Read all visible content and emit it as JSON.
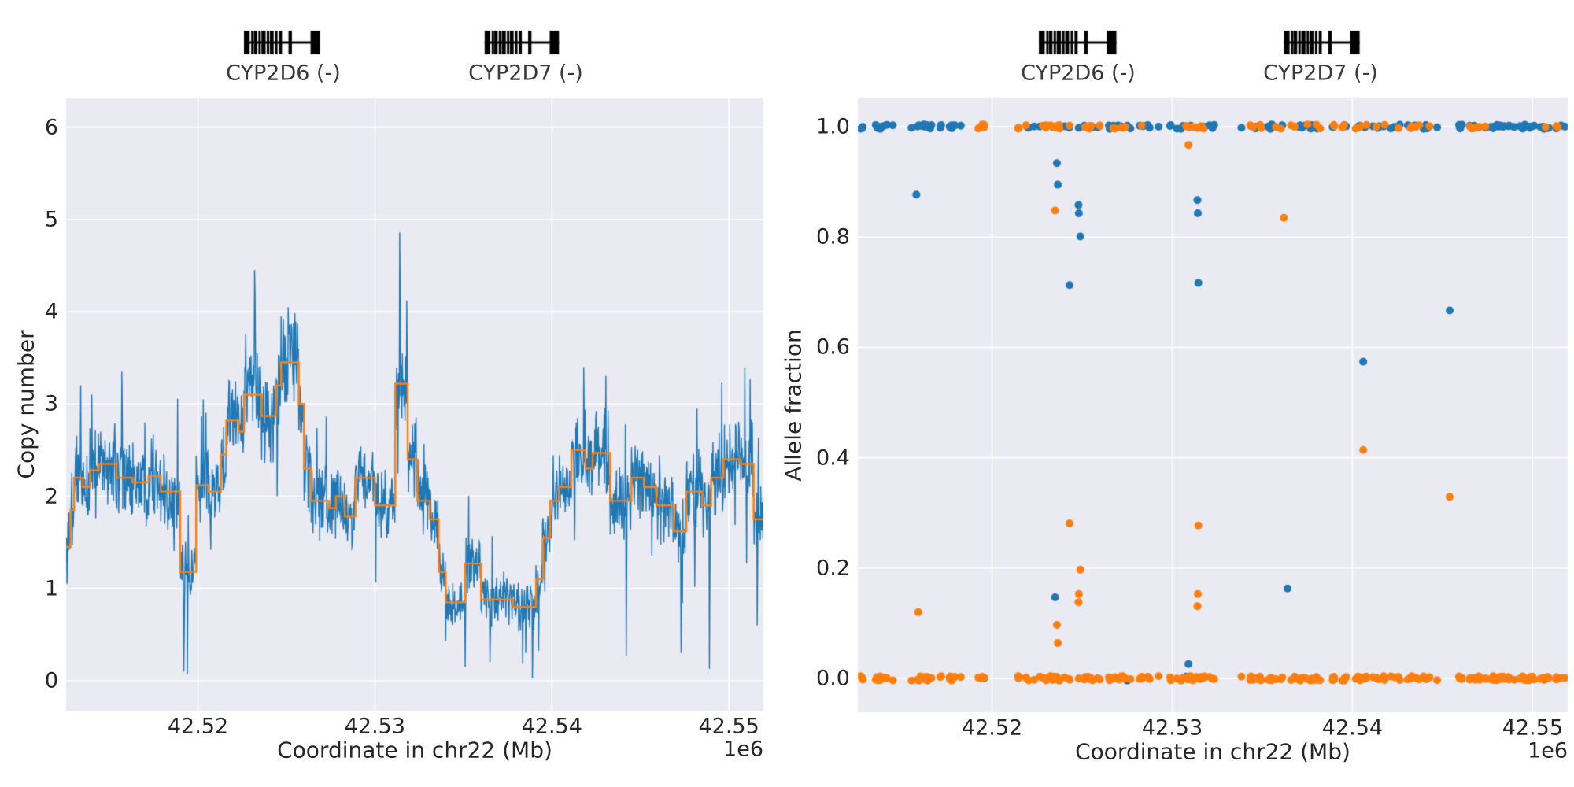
{
  "colors": {
    "raw_series_blue": "#1f77b4",
    "segment_series_orange": "#ff7f0e",
    "axes_background": "#eaeaf2",
    "grid": "#ffffff",
    "text": "#262626",
    "gene_glyph": "#000000"
  },
  "chart_data": [
    {
      "type": "line",
      "panel": "copy-number",
      "xlabel": "Coordinate in chr22 (Mb)",
      "ylabel": "Copy number",
      "x_offset_label": "1e6",
      "grid": true,
      "xlim": [
        42512550,
        42551950
      ],
      "ylim": [
        -0.324,
        6.312
      ],
      "x_ticks": [
        {
          "v": 42520000,
          "label": "42.52"
        },
        {
          "v": 42530000,
          "label": "42.53"
        },
        {
          "v": 42540000,
          "label": "42.54"
        },
        {
          "v": 42550000,
          "label": "42.55"
        }
      ],
      "y_ticks": [
        {
          "v": 0,
          "label": "0"
        },
        {
          "v": 1,
          "label": "1"
        },
        {
          "v": 2,
          "label": "2"
        },
        {
          "v": 3,
          "label": "3"
        },
        {
          "v": 4,
          "label": "4"
        },
        {
          "v": 5,
          "label": "5"
        },
        {
          "v": 6,
          "label": "6"
        }
      ],
      "genes": [
        {
          "name": "CYP2D6 (-)",
          "start": 42522600,
          "end": 42526900
        },
        {
          "name": "CYP2D7 (-)",
          "start": 42536200,
          "end": 42540400
        }
      ],
      "gene_exon_fractions": [
        [
          0.0,
          0.075
        ],
        [
          0.095,
          0.115
        ],
        [
          0.13,
          0.175
        ],
        [
          0.19,
          0.215
        ],
        [
          0.23,
          0.285
        ],
        [
          0.3,
          0.325
        ],
        [
          0.34,
          0.39
        ],
        [
          0.41,
          0.435
        ],
        [
          0.46,
          0.5
        ],
        [
          0.585,
          0.63
        ],
        [
          0.875,
          1.0
        ]
      ],
      "series": [
        {
          "name": "raw_copy_number",
          "color": "#1f77b4",
          "style": "noisy_line",
          "step_bp": 25,
          "noise": {
            "seed": 1234,
            "amp1": 0.27,
            "amp2": 0.16,
            "p_big": 0.07,
            "big_amp": 0.8,
            "base_scale_a": 0.55,
            "base_scale_b": 0.28
          },
          "spikes": [
            [
              42512600,
              1.05
            ],
            [
              42514000,
              3.1
            ],
            [
              42515700,
              3.35
            ],
            [
              42519200,
              0.1
            ],
            [
              42519400,
              0.07
            ],
            [
              42520300,
              3.05
            ],
            [
              42523200,
              4.45
            ],
            [
              42524700,
              3.95
            ],
            [
              42525100,
              4.05
            ],
            [
              42531400,
              4.86
            ],
            [
              42531800,
              4.12
            ],
            [
              42535100,
              0.15
            ],
            [
              42536500,
              0.2
            ],
            [
              42538900,
              0.03
            ],
            [
              42541800,
              3.4
            ],
            [
              42544200,
              0.27
            ],
            [
              42547300,
              0.3
            ],
            [
              42548900,
              0.13
            ],
            [
              42551200,
              3.27
            ],
            [
              42551600,
              0.6
            ]
          ]
        },
        {
          "name": "segment_mean_copy_number",
          "color": "#ff7f0e",
          "style": "step_line",
          "segments": [
            [
              42512550,
              42512800,
              1.45
            ],
            [
              42512800,
              42513000,
              1.85
            ],
            [
              42513000,
              42513500,
              2.2
            ],
            [
              42513500,
              42513900,
              2.1
            ],
            [
              42513900,
              42514400,
              2.28
            ],
            [
              42514400,
              42515400,
              2.35
            ],
            [
              42515400,
              42516300,
              2.2
            ],
            [
              42516300,
              42517200,
              2.15
            ],
            [
              42517200,
              42517900,
              2.22
            ],
            [
              42517900,
              42519000,
              2.05
            ],
            [
              42519000,
              42519900,
              1.18
            ],
            [
              42519900,
              42520600,
              2.12
            ],
            [
              42520600,
              42521300,
              2.05
            ],
            [
              42521300,
              42521600,
              2.45
            ],
            [
              42521600,
              42522300,
              2.82
            ],
            [
              42522300,
              42522600,
              2.7
            ],
            [
              42522600,
              42523600,
              3.1
            ],
            [
              42523600,
              42524400,
              2.87
            ],
            [
              42524400,
              42524700,
              3.2
            ],
            [
              42524700,
              42525700,
              3.45
            ],
            [
              42525700,
              42526000,
              3.0
            ],
            [
              42526000,
              42526400,
              2.3
            ],
            [
              42526400,
              42527400,
              1.95
            ],
            [
              42527400,
              42527800,
              1.87
            ],
            [
              42527800,
              42528300,
              2.0
            ],
            [
              42528300,
              42528900,
              1.78
            ],
            [
              42528900,
              42530000,
              2.2
            ],
            [
              42530000,
              42531150,
              1.9
            ],
            [
              42531150,
              42531850,
              3.22
            ],
            [
              42531850,
              42532400,
              2.4
            ],
            [
              42532400,
              42533100,
              1.95
            ],
            [
              42533100,
              42533600,
              1.75
            ],
            [
              42533600,
              42534000,
              1.18
            ],
            [
              42534000,
              42535100,
              0.85
            ],
            [
              42535100,
              42536000,
              1.27
            ],
            [
              42536000,
              42537800,
              0.88
            ],
            [
              42537800,
              42539100,
              0.8
            ],
            [
              42539100,
              42539500,
              1.1
            ],
            [
              42539500,
              42539900,
              1.55
            ],
            [
              42539900,
              42540400,
              1.95
            ],
            [
              42540400,
              42541100,
              2.1
            ],
            [
              42541100,
              42541900,
              2.5
            ],
            [
              42541900,
              42542300,
              2.3
            ],
            [
              42542300,
              42543300,
              2.47
            ],
            [
              42543300,
              42544500,
              1.95
            ],
            [
              42544500,
              42545200,
              2.2
            ],
            [
              42545200,
              42545900,
              2.1
            ],
            [
              42545900,
              42546900,
              1.9
            ],
            [
              42546900,
              42547600,
              1.62
            ],
            [
              42547600,
              42548500,
              2.05
            ],
            [
              42548500,
              42549000,
              1.9
            ],
            [
              42549000,
              42549700,
              2.2
            ],
            [
              42549700,
              42550600,
              2.4
            ],
            [
              42550600,
              42551400,
              2.35
            ],
            [
              42551400,
              42551950,
              1.75
            ]
          ]
        }
      ]
    },
    {
      "type": "scatter",
      "panel": "allele-fraction",
      "xlabel": "Coordinate in chr22 (Mb)",
      "ylabel": "Allele fraction",
      "x_offset_label": "1e6",
      "grid": true,
      "xlim": [
        42512550,
        42551950
      ],
      "ylim": [
        -0.0614,
        1.0528
      ],
      "x_ticks": [
        {
          "v": 42520000,
          "label": "42.52"
        },
        {
          "v": 42530000,
          "label": "42.53"
        },
        {
          "v": 42540000,
          "label": "42.54"
        },
        {
          "v": 42550000,
          "label": "42.55"
        }
      ],
      "y_ticks": [
        {
          "v": 0.0,
          "label": "0.0"
        },
        {
          "v": 0.2,
          "label": "0.2"
        },
        {
          "v": 0.4,
          "label": "0.4"
        },
        {
          "v": 0.6,
          "label": "0.6"
        },
        {
          "v": 0.8,
          "label": "0.8"
        },
        {
          "v": 1.0,
          "label": "1.0"
        }
      ],
      "genes": [
        {
          "name": "CYP2D6 (-)",
          "start": 42522600,
          "end": 42526900
        },
        {
          "name": "CYP2D7 (-)",
          "start": 42536200,
          "end": 42540400
        }
      ],
      "gene_exon_fractions": [
        [
          0.0,
          0.075
        ],
        [
          0.095,
          0.115
        ],
        [
          0.13,
          0.175
        ],
        [
          0.19,
          0.215
        ],
        [
          0.23,
          0.285
        ],
        [
          0.3,
          0.325
        ],
        [
          0.34,
          0.39
        ],
        [
          0.41,
          0.435
        ],
        [
          0.46,
          0.5
        ],
        [
          0.585,
          0.63
        ],
        [
          0.875,
          1.0
        ]
      ],
      "series": [
        {
          "name": "haplotype1_snps",
          "color": "#1f77b4"
        },
        {
          "name": "haplotype2_snps",
          "color": "#ff7f0e"
        }
      ],
      "marker_radius": 5,
      "band_jitter": 0.004,
      "band_seed": 7,
      "homozygous_band_segments": [
        [
          42512700,
          42513000,
          3,
          0.0,
          0.0
        ],
        [
          42513200,
          42514600,
          10,
          0.0,
          0.0
        ],
        [
          42515000,
          42516700,
          12,
          0.0,
          0.0
        ],
        [
          42517000,
          42518600,
          10,
          0.0,
          0.0
        ],
        [
          42519000,
          42519800,
          5,
          1.0,
          0.3
        ],
        [
          42521200,
          42523800,
          18,
          0.7,
          0.04
        ],
        [
          42523800,
          42526900,
          20,
          0.5,
          0.06
        ],
        [
          42526900,
          42529300,
          16,
          0.5,
          0.05
        ],
        [
          42529300,
          42532500,
          20,
          0.6,
          0.03
        ],
        [
          42533700,
          42536300,
          18,
          0.5,
          0.05
        ],
        [
          42536300,
          42539700,
          22,
          0.5,
          0.03
        ],
        [
          42539700,
          42543500,
          24,
          0.38,
          0.0
        ],
        [
          42543500,
          42547900,
          26,
          0.35,
          0.0
        ],
        [
          42547900,
          42550400,
          16,
          0.15,
          0.0
        ],
        [
          42550400,
          42551900,
          12,
          0.07,
          0.0
        ]
      ],
      "heterozygous_points": [
        [
          42515800,
          0.877,
          "b"
        ],
        [
          42515900,
          0.12,
          "o"
        ],
        [
          42523500,
          0.848,
          "o"
        ],
        [
          42523500,
          0.147,
          "b"
        ],
        [
          42523600,
          0.934,
          "b"
        ],
        [
          42523600,
          0.097,
          "o"
        ],
        [
          42523650,
          0.895,
          "b"
        ],
        [
          42523650,
          0.064,
          "o"
        ],
        [
          42524300,
          0.713,
          "b"
        ],
        [
          42524300,
          0.281,
          "o"
        ],
        [
          42524800,
          0.858,
          "b"
        ],
        [
          42524800,
          0.138,
          "o"
        ],
        [
          42524820,
          0.843,
          "b"
        ],
        [
          42524820,
          0.153,
          "o"
        ],
        [
          42524900,
          0.801,
          "b"
        ],
        [
          42524900,
          0.197,
          "o"
        ],
        [
          42530900,
          0.967,
          "o"
        ],
        [
          42530900,
          0.026,
          "b"
        ],
        [
          42531400,
          0.867,
          "b"
        ],
        [
          42531400,
          0.131,
          "o"
        ],
        [
          42531420,
          0.843,
          "b"
        ],
        [
          42531420,
          0.153,
          "o"
        ],
        [
          42531450,
          0.717,
          "b"
        ],
        [
          42531450,
          0.277,
          "o"
        ],
        [
          42536200,
          0.835,
          "o"
        ],
        [
          42536400,
          0.163,
          "b"
        ],
        [
          42540600,
          0.574,
          "b"
        ],
        [
          42540600,
          0.414,
          "o"
        ],
        [
          42545400,
          0.667,
          "b"
        ],
        [
          42545400,
          0.329,
          "o"
        ]
      ]
    }
  ]
}
